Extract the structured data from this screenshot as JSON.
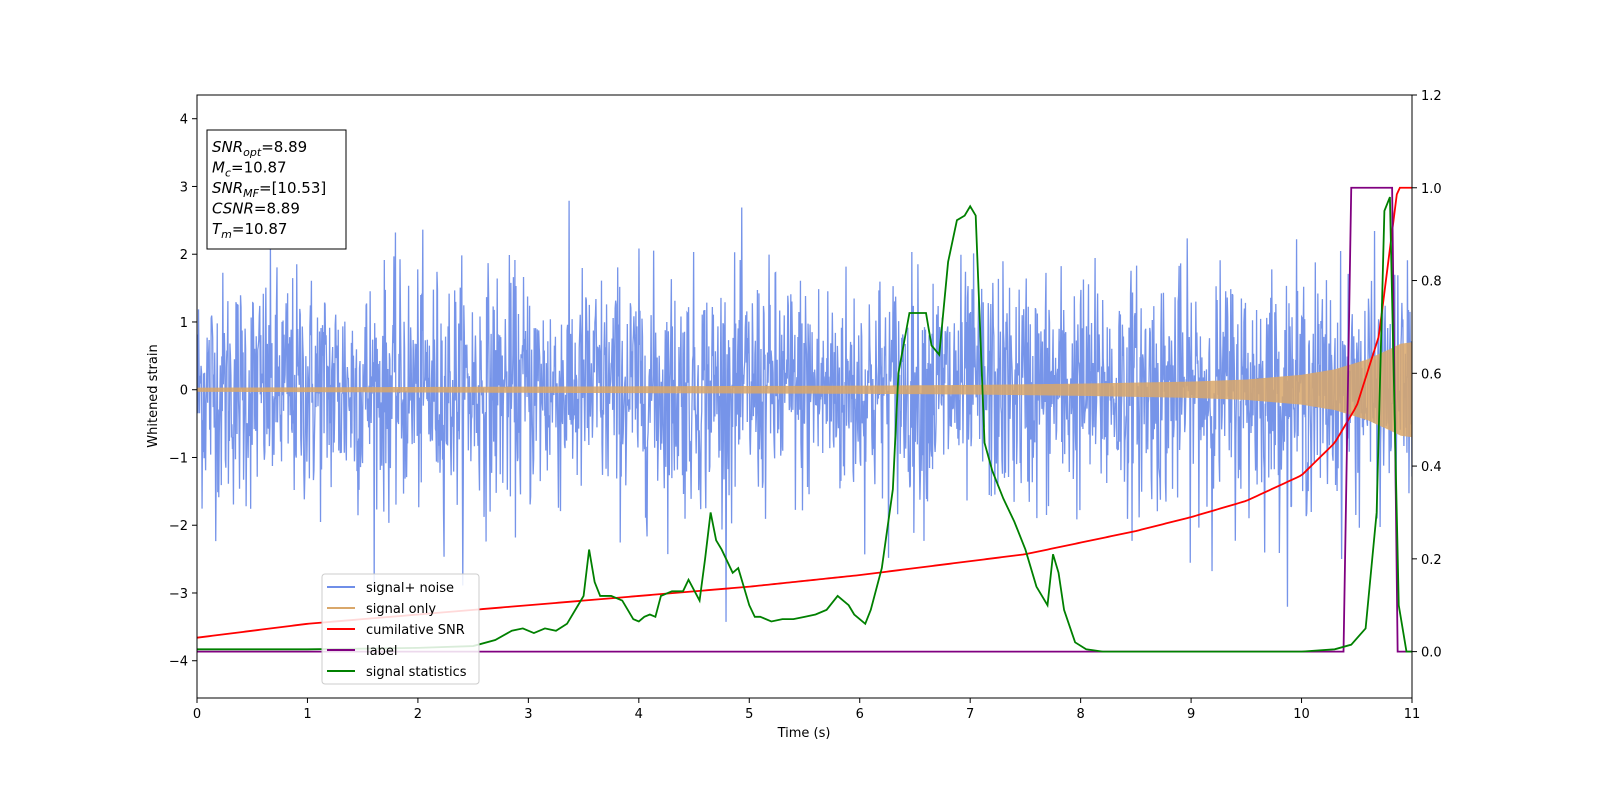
{
  "chart_data": {
    "type": "line",
    "xlabel": "Time (s)",
    "ylabel": "Whitened strain",
    "xlim": [
      0,
      11
    ],
    "ylim": [
      -4.55,
      4.35
    ],
    "y2lim": [
      -0.1,
      1.2
    ],
    "x_ticks": [
      "0",
      "1",
      "2",
      "3",
      "4",
      "5",
      "6",
      "7",
      "8",
      "9",
      "10",
      "11"
    ],
    "y_ticks": [
      "4",
      "3",
      "2",
      "1",
      "0",
      "−1",
      "−2",
      "−3",
      "−4"
    ],
    "y2_ticks": [
      "1.2",
      "1.0",
      "0.8",
      "0.6",
      "0.4",
      "0.2",
      "0.0"
    ],
    "stats_box": [
      {
        "symbol": "SNR",
        "sub": "opt",
        "value": "=8.89"
      },
      {
        "symbol": "M",
        "sub": "c",
        "value": "=10.87"
      },
      {
        "symbol": "SNR",
        "sub": "MF",
        "value": "=[10.53]"
      },
      {
        "symbol": "CSNR",
        "sub": "",
        "value": "=8.89"
      },
      {
        "symbol": "T",
        "sub": "m",
        "value": "=10.87"
      }
    ],
    "legend": {
      "placement": "lower-left",
      "entries": [
        "signal+ noise",
        "signal only",
        "cumilative SNR",
        "label",
        "signal statistics"
      ]
    },
    "series": [
      {
        "name": "signal+ noise",
        "axis": "left",
        "color": "#6f8ee8",
        "kind": "noise",
        "center": 0,
        "typical_peak": 2.3,
        "max_peak": 4.0,
        "x_range": [
          0,
          11
        ]
      },
      {
        "name": "signal only",
        "axis": "left",
        "color": "#d9a76a",
        "kind": "chirp",
        "amplitude_envelope": {
          "x": [
            0,
            2,
            4,
            6,
            7,
            8,
            9,
            9.5,
            10,
            10.3,
            10.6,
            10.8,
            10.9,
            11
          ],
          "y": [
            0.03,
            0.04,
            0.05,
            0.06,
            0.07,
            0.09,
            0.12,
            0.15,
            0.22,
            0.3,
            0.45,
            0.6,
            0.68,
            0.7
          ]
        }
      },
      {
        "name": "cumilative SNR",
        "axis": "right",
        "color": "#ff0000",
        "x": [
          0,
          1,
          2,
          3,
          4,
          5,
          6,
          7,
          7.5,
          8,
          8.5,
          9,
          9.5,
          10,
          10.3,
          10.5,
          10.7,
          10.87,
          11
        ],
        "y": [
          0.03,
          0.06,
          0.08,
          0.1,
          0.12,
          0.14,
          0.165,
          0.195,
          0.21,
          0.235,
          0.26,
          0.29,
          0.325,
          0.38,
          0.45,
          0.53,
          0.68,
          1.0,
          1.0
        ]
      },
      {
        "name": "label",
        "axis": "right",
        "color": "#800080",
        "x": [
          0,
          10.38,
          10.45,
          10.82,
          10.87,
          11
        ],
        "y": [
          0,
          0,
          1.0,
          1.0,
          0,
          0
        ]
      },
      {
        "name": "signal statistics",
        "axis": "right",
        "color": "#008000",
        "x": [
          0,
          1.0,
          2.0,
          2.5,
          2.7,
          2.85,
          2.95,
          3.05,
          3.15,
          3.25,
          3.35,
          3.45,
          3.5,
          3.55,
          3.6,
          3.65,
          3.75,
          3.85,
          3.95,
          4.0,
          4.05,
          4.1,
          4.15,
          4.2,
          4.3,
          4.4,
          4.45,
          4.55,
          4.6,
          4.65,
          4.7,
          4.75,
          4.85,
          4.9,
          4.95,
          5.0,
          5.05,
          5.1,
          5.2,
          5.3,
          5.4,
          5.5,
          5.6,
          5.7,
          5.8,
          5.9,
          5.95,
          6.05,
          6.1,
          6.2,
          6.3,
          6.35,
          6.45,
          6.6,
          6.65,
          6.72,
          6.8,
          6.88,
          6.95,
          7.0,
          7.05,
          7.13,
          7.2,
          7.3,
          7.4,
          7.5,
          7.6,
          7.65,
          7.7,
          7.75,
          7.8,
          7.85,
          7.95,
          8.05,
          8.2,
          8.5,
          9.0,
          9.5,
          10.0,
          10.3,
          10.45,
          10.58,
          10.68,
          10.75,
          10.8,
          10.88,
          10.95,
          11.0
        ],
        "y": [
          0.005,
          0.005,
          0.008,
          0.012,
          0.025,
          0.045,
          0.05,
          0.04,
          0.05,
          0.045,
          0.06,
          0.1,
          0.12,
          0.22,
          0.15,
          0.12,
          0.12,
          0.11,
          0.07,
          0.065,
          0.075,
          0.08,
          0.075,
          0.12,
          0.13,
          0.13,
          0.155,
          0.11,
          0.2,
          0.3,
          0.24,
          0.22,
          0.17,
          0.18,
          0.14,
          0.1,
          0.075,
          0.075,
          0.065,
          0.07,
          0.07,
          0.075,
          0.08,
          0.09,
          0.12,
          0.1,
          0.08,
          0.06,
          0.09,
          0.18,
          0.35,
          0.6,
          0.73,
          0.73,
          0.66,
          0.64,
          0.84,
          0.93,
          0.94,
          0.96,
          0.94,
          0.45,
          0.39,
          0.33,
          0.28,
          0.22,
          0.14,
          0.12,
          0.1,
          0.21,
          0.17,
          0.09,
          0.02,
          0.005,
          0.0,
          0.0,
          0.0,
          0.0,
          0.0,
          0.005,
          0.015,
          0.05,
          0.3,
          0.95,
          0.98,
          0.1,
          0.0,
          0.0
        ]
      }
    ]
  }
}
